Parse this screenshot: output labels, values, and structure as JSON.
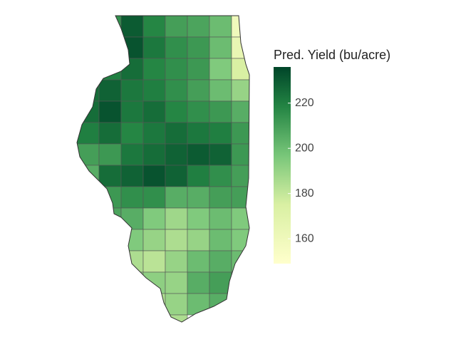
{
  "chart_data": {
    "type": "choropleth",
    "legend_title": "Pred. Yield (bu/acre)",
    "colorscale": [
      [
        0,
        "#ffffcc"
      ],
      [
        0.3,
        "#d9f0a3"
      ],
      [
        0.55,
        "#78c679"
      ],
      [
        0.8,
        "#238443"
      ],
      [
        1,
        "#004529"
      ]
    ],
    "zlim": [
      149,
      236
    ],
    "zticks": [
      160,
      180,
      200,
      220
    ],
    "values": [
      [
        null,
        215,
        230,
        218,
        210,
        208,
        200,
        160
      ],
      [
        null,
        215,
        232,
        222,
        215,
        212,
        200,
        165
      ],
      [
        220,
        220,
        225,
        218,
        215,
        212,
        195,
        175
      ],
      [
        225,
        228,
        222,
        220,
        215,
        210,
        200,
        190
      ],
      [
        225,
        232,
        222,
        225,
        218,
        215,
        212,
        205
      ],
      [
        220,
        225,
        218,
        222,
        225,
        222,
        220,
        212
      ],
      [
        210,
        212,
        222,
        225,
        228,
        230,
        228,
        212
      ],
      [
        205,
        225,
        228,
        232,
        228,
        220,
        215,
        210
      ],
      [
        null,
        212,
        215,
        215,
        205,
        205,
        210,
        210
      ],
      [
        null,
        208,
        205,
        195,
        188,
        195,
        200,
        195
      ],
      [
        null,
        195,
        195,
        190,
        185,
        190,
        200,
        195
      ],
      [
        null,
        180,
        185,
        182,
        190,
        200,
        205,
        200
      ],
      [
        null,
        null,
        190,
        192,
        190,
        205,
        210,
        200
      ],
      [
        null,
        null,
        null,
        185,
        190,
        200,
        205,
        null
      ],
      [
        null,
        null,
        null,
        185,
        185,
        null,
        null,
        null
      ]
    ]
  }
}
